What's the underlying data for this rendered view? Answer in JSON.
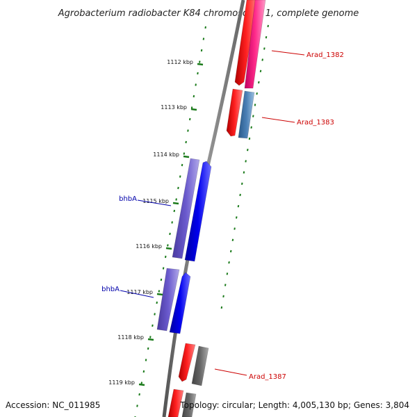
{
  "title": "Agrobacterium radiobacter K84 chromosome 1, complete genome",
  "footer": {
    "accession": "Accession: NC_011985",
    "info": "Topology: circular; Length: 4,005,130 bp; Genes: 3,804"
  },
  "ticks": [
    {
      "label": "1112 kbp"
    },
    {
      "label": "1113 kbp"
    },
    {
      "label": "1114 kbp"
    },
    {
      "label": "1115 kbp"
    },
    {
      "label": "1116 kbp"
    },
    {
      "label": "1117 kbp"
    },
    {
      "label": "1118 kbp"
    },
    {
      "label": "1119 kbp"
    }
  ],
  "features": [
    {
      "label": "Arad_1382",
      "color": "#cc0000"
    },
    {
      "label": "Arad_1383",
      "color": "#cc0000"
    },
    {
      "label": "bhbA",
      "color": "#0000aa"
    },
    {
      "label": "bhbA",
      "color": "#0000aa"
    },
    {
      "label": "Arad_1387",
      "color": "#cc0000"
    }
  ],
  "colors": {
    "backbone": "#7a7a7a",
    "tick_green": "#1a7a1a",
    "cds_red": "#ff0000",
    "gene_pink": "#ff2a8a",
    "gene_steel": "#4a7fb5",
    "gene_violet": "#6a5acd",
    "gene_blue": "#0000ee",
    "gene_gray": "#666666"
  }
}
